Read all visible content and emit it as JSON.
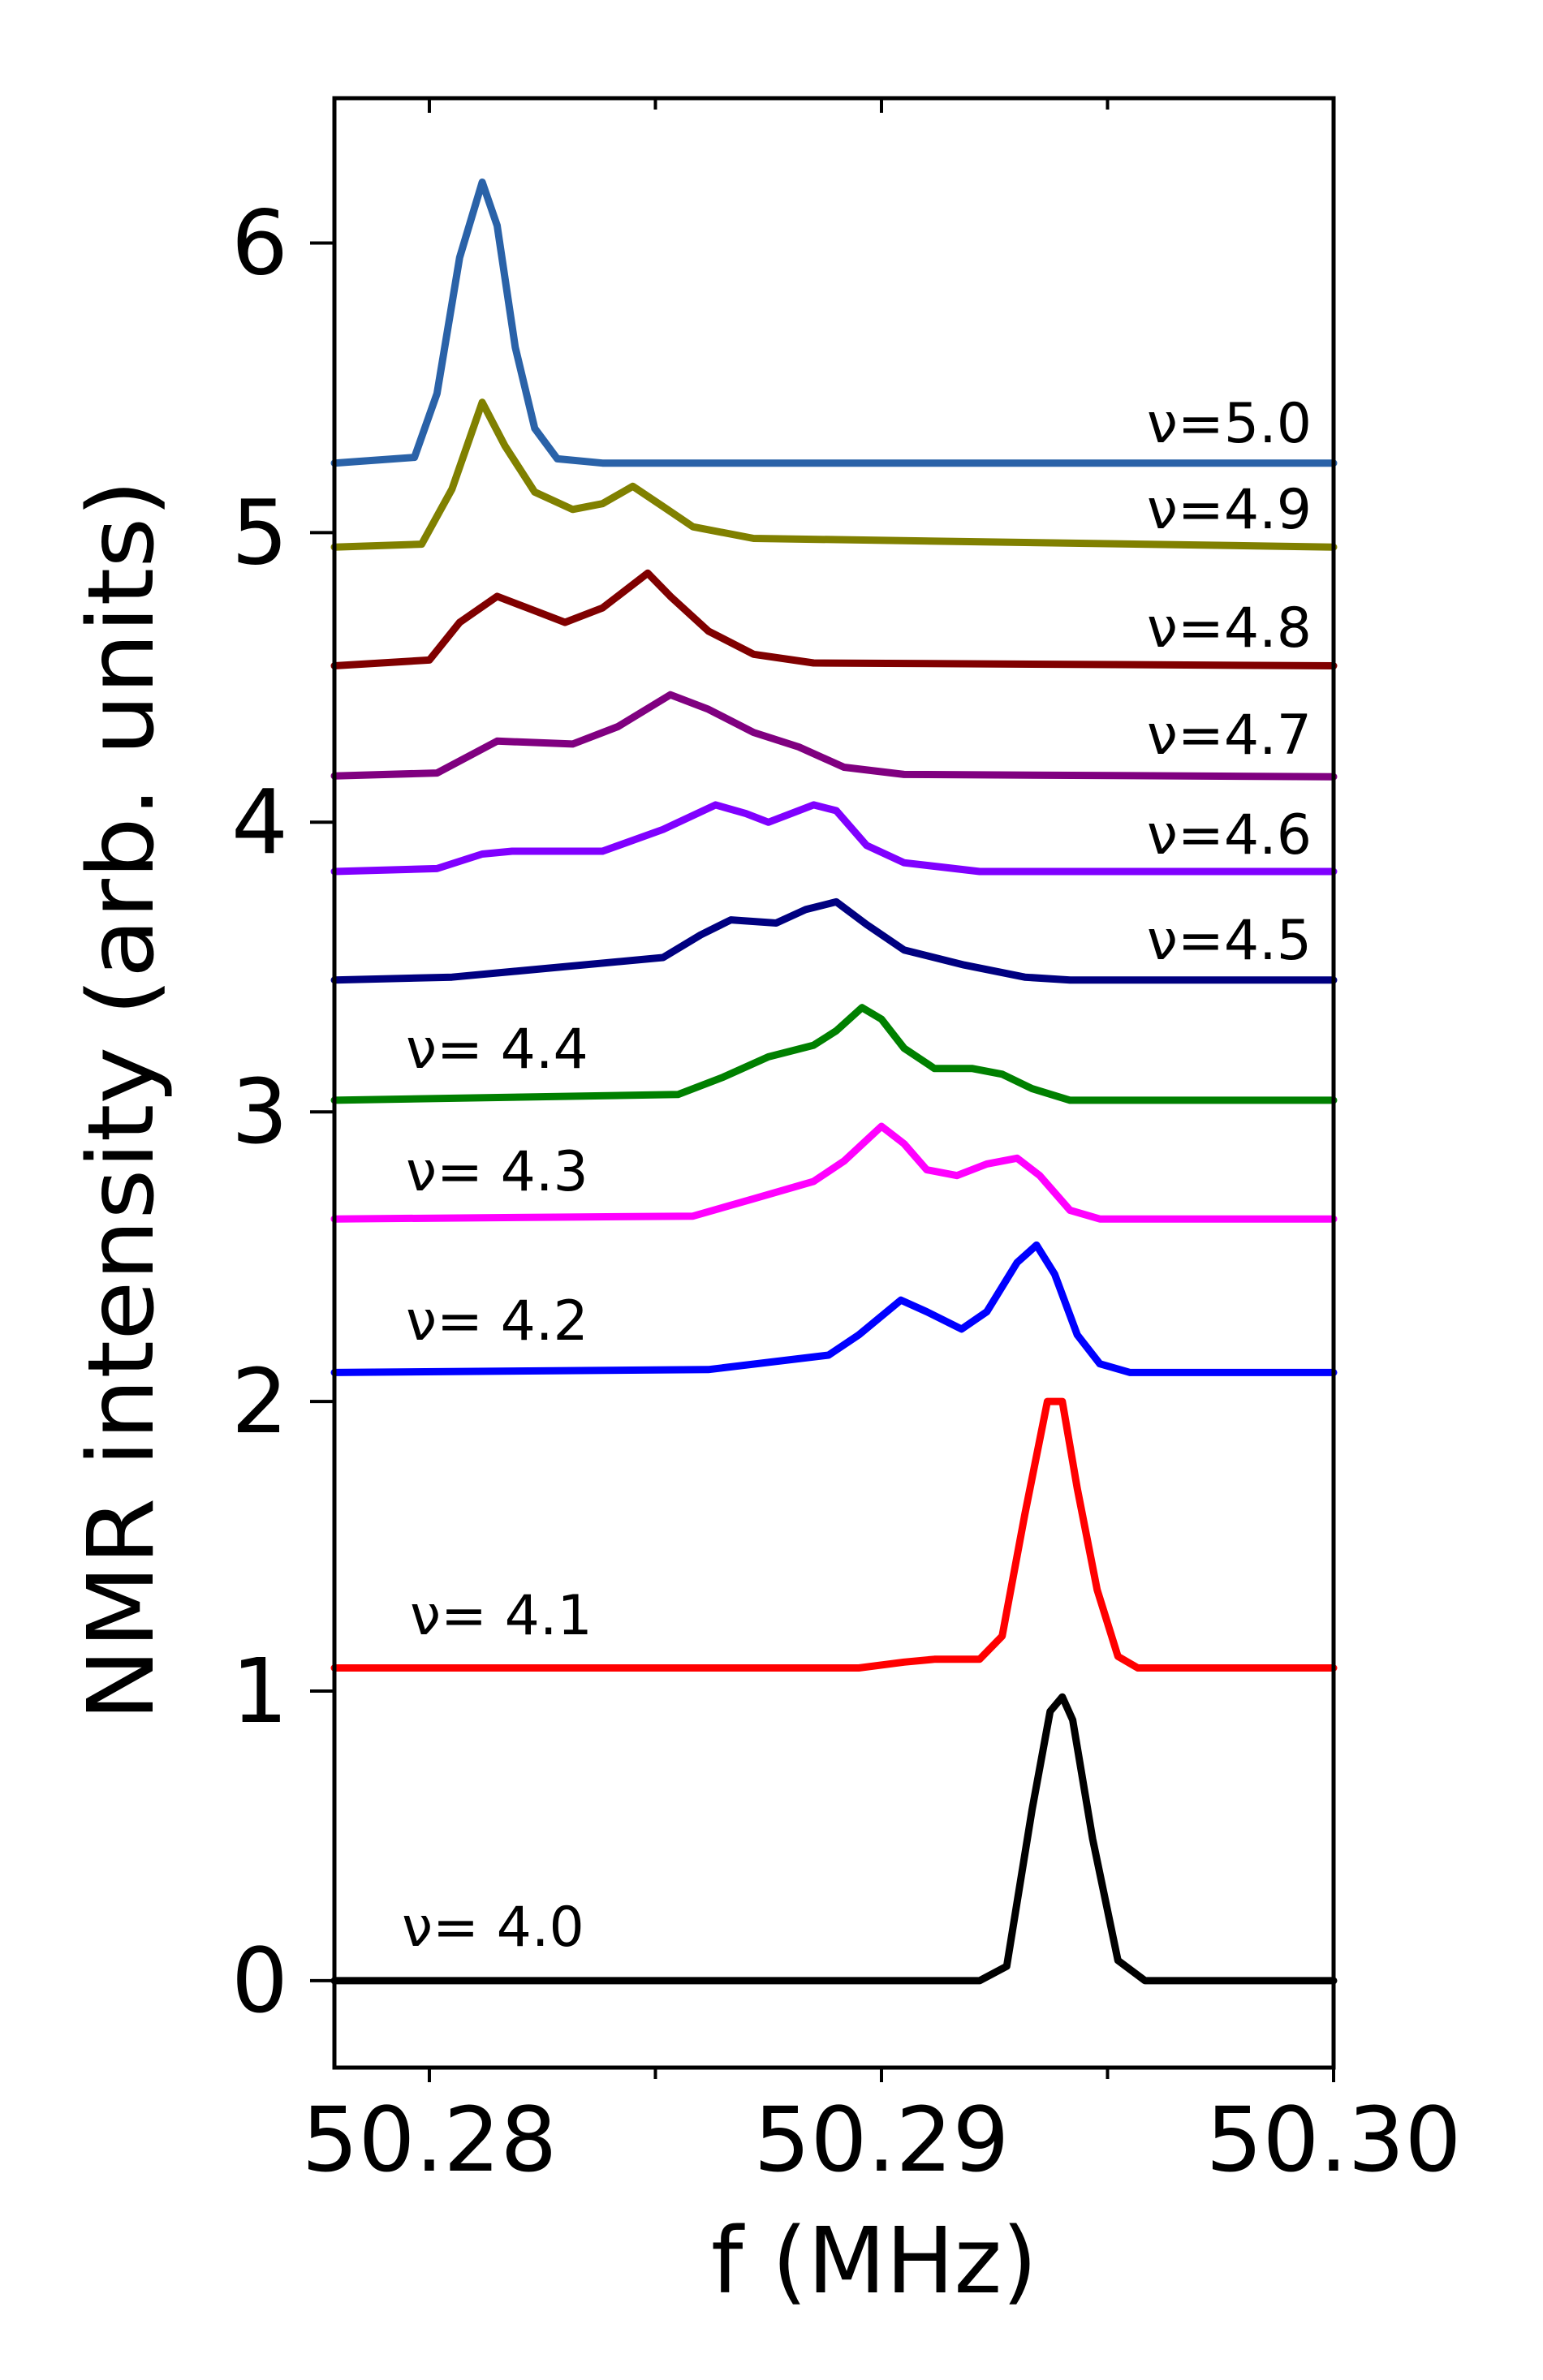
{
  "chart_data": {
    "type": "line",
    "title": "",
    "xlabel": "f (MHz)",
    "ylabel": "NMR intensity (arb. units)",
    "xlim": [
      50.2779,
      50.3
    ],
    "ylim": [
      -0.3,
      6.5
    ],
    "xticks": [
      50.28,
      50.29,
      50.3
    ],
    "xtick_labels": [
      "50.28",
      "50.29",
      "50.30"
    ],
    "x_minor_ticks": [
      50.285,
      50.295
    ],
    "yticks": [
      0,
      1,
      2,
      3,
      4,
      5,
      6
    ],
    "ytick_labels": [
      "0",
      "1",
      "2",
      "3",
      "4",
      "5",
      "6"
    ],
    "grid": false,
    "legend": "inline labels",
    "series": [
      {
        "name": "ν=5.0",
        "label": "ν=5.0",
        "color": "#2a62a8",
        "x": [
          50.2779,
          50.27967,
          50.28017,
          50.28067,
          50.28117,
          50.2815,
          50.2819,
          50.28233,
          50.28283,
          50.28383,
          50.3
        ],
        "y": [
          5.24,
          5.26,
          5.48,
          5.95,
          6.21,
          6.06,
          5.64,
          5.36,
          5.255,
          5.24,
          5.24
        ]
      },
      {
        "name": "ν=4.9",
        "label": "ν=4.9",
        "color": "#808000",
        "x": [
          50.2779,
          50.27983,
          50.2805,
          50.28117,
          50.28167,
          50.28233,
          50.28317,
          50.28383,
          50.2845,
          50.28517,
          50.28583,
          50.28717,
          50.3
        ],
        "y": [
          4.95,
          4.96,
          5.15,
          5.45,
          5.3,
          5.14,
          5.08,
          5.1,
          5.16,
          5.09,
          5.02,
          4.98,
          4.95
        ]
      },
      {
        "name": "ν=4.8",
        "label": "ν=4.8",
        "color": "#800000",
        "x": [
          50.2779,
          50.28,
          50.28067,
          50.2815,
          50.28217,
          50.283,
          50.28383,
          50.28483,
          50.28533,
          50.28617,
          50.28717,
          50.2885,
          50.3
        ],
        "y": [
          4.54,
          4.56,
          4.69,
          4.78,
          4.74,
          4.69,
          4.74,
          4.86,
          4.78,
          4.66,
          4.58,
          4.55,
          4.54
        ]
      },
      {
        "name": "ν=4.7",
        "label": "ν=4.7",
        "color": "#800080",
        "x": [
          50.2779,
          50.28017,
          50.2815,
          50.28317,
          50.28417,
          50.28533,
          50.28617,
          50.28717,
          50.28817,
          50.28917,
          50.2905,
          50.3
        ],
        "y": [
          4.16,
          4.17,
          4.28,
          4.27,
          4.33,
          4.44,
          4.39,
          4.31,
          4.26,
          4.19,
          4.165,
          4.157
        ]
      },
      {
        "name": "ν=4.6",
        "label": "ν=4.6",
        "color": "#8000ff",
        "x": [
          50.2779,
          50.28017,
          50.28117,
          50.28183,
          50.28383,
          50.28517,
          50.28633,
          50.287,
          50.2875,
          50.2885,
          50.289,
          50.28967,
          50.2905,
          50.29217,
          50.3
        ],
        "y": [
          3.83,
          3.84,
          3.89,
          3.9,
          3.9,
          3.975,
          4.06,
          4.03,
          4.0,
          4.06,
          4.04,
          3.92,
          3.86,
          3.83,
          3.83
        ]
      },
      {
        "name": "ν=4.5",
        "label": "ν=4.5",
        "color": "#000080",
        "x": [
          50.2779,
          50.2805,
          50.28517,
          50.286,
          50.28667,
          50.28767,
          50.28833,
          50.289,
          50.28967,
          50.2905,
          50.29183,
          50.29317,
          50.29417,
          50.3
        ],
        "y": [
          3.455,
          3.465,
          3.533,
          3.611,
          3.663,
          3.652,
          3.699,
          3.725,
          3.647,
          3.559,
          3.507,
          3.465,
          3.455,
          3.455
        ]
      },
      {
        "name": "ν=4.4",
        "label": "ν= 4.4",
        "color": "#008000",
        "x": [
          50.2779,
          50.2855,
          50.2865,
          50.2875,
          50.2885,
          50.289,
          50.28957,
          50.29,
          50.2905,
          50.29117,
          50.292,
          50.29267,
          50.29333,
          50.29417,
          50.3
        ],
        "y": [
          3.04,
          3.06,
          3.12,
          3.19,
          3.23,
          3.28,
          3.36,
          3.32,
          3.22,
          3.15,
          3.15,
          3.13,
          3.08,
          3.04,
          3.04
        ]
      },
      {
        "name": "ν=4.3",
        "label": "ν= 4.3",
        "color": "#ff00ff",
        "x": [
          50.2779,
          50.28583,
          50.28717,
          50.2885,
          50.28917,
          50.29,
          50.2905,
          50.291,
          50.29167,
          50.29233,
          50.293,
          50.2935,
          50.29417,
          50.29483,
          50.3
        ],
        "y": [
          2.63,
          2.64,
          2.7,
          2.76,
          2.83,
          2.95,
          2.89,
          2.8,
          2.78,
          2.82,
          2.84,
          2.78,
          2.66,
          2.63,
          2.63
        ]
      },
      {
        "name": "ν=4.2",
        "label": "ν= 4.2",
        "color": "#0000ff",
        "x": [
          50.2779,
          50.28617,
          50.28883,
          50.2895,
          50.29043,
          50.291,
          50.29177,
          50.29233,
          50.293,
          50.29343,
          50.29383,
          50.29433,
          50.29483,
          50.2955,
          50.3
        ],
        "y": [
          2.1,
          2.11,
          2.16,
          2.23,
          2.35,
          2.31,
          2.25,
          2.31,
          2.48,
          2.54,
          2.44,
          2.23,
          2.13,
          2.1,
          2.1
        ]
      },
      {
        "name": "ν=4.1",
        "label": "ν= 4.1",
        "color": "#ff0000",
        "x": [
          50.2779,
          50.2895,
          50.2905,
          50.29117,
          50.29217,
          50.29267,
          50.29317,
          50.29367,
          50.294,
          50.29433,
          50.29477,
          50.29523,
          50.29567,
          50.3
        ],
        "y": [
          1.08,
          1.08,
          1.1,
          1.11,
          1.11,
          1.19,
          1.61,
          2.0,
          2.0,
          1.7,
          1.35,
          1.12,
          1.08,
          1.08
        ]
      },
      {
        "name": "ν=4.0",
        "label": "ν= 4.0",
        "color": "#000000",
        "x": [
          50.2779,
          50.29217,
          50.29277,
          50.29333,
          50.29373,
          50.294,
          50.29423,
          50.29467,
          50.29523,
          50.29583,
          50.3
        ],
        "y": [
          0,
          0,
          0.05,
          0.59,
          0.93,
          0.98,
          0.9,
          0.49,
          0.07,
          0,
          0
        ]
      }
    ]
  }
}
